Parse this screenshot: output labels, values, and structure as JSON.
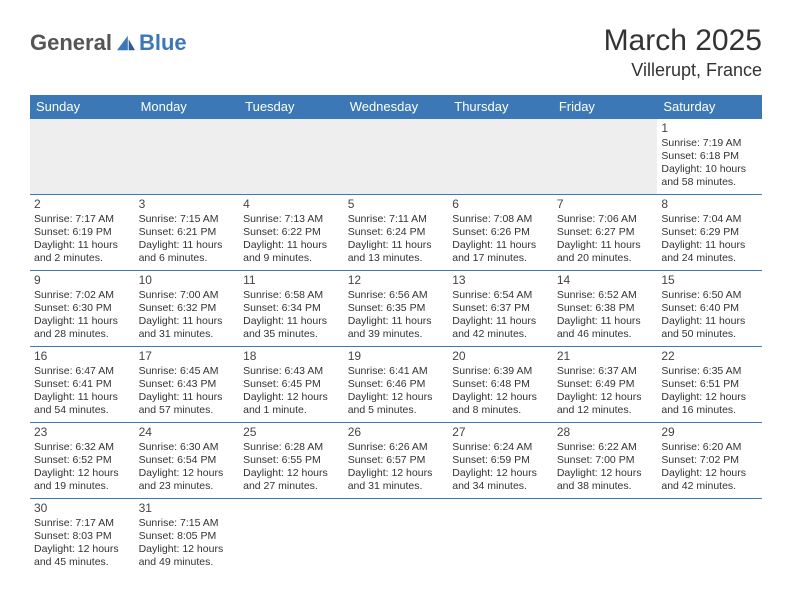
{
  "logo": {
    "text_general": "General",
    "text_blue": "Blue"
  },
  "title": "March 2025",
  "location": "Villerupt, France",
  "colors": {
    "header_bg": "#3b78b5",
    "header_text": "#ffffff",
    "border": "#3b78b5",
    "blank_bg": "#eeeeee",
    "text": "#333333"
  },
  "dayHeaders": [
    "Sunday",
    "Monday",
    "Tuesday",
    "Wednesday",
    "Thursday",
    "Friday",
    "Saturday"
  ],
  "weeks": [
    [
      null,
      null,
      null,
      null,
      null,
      null,
      {
        "n": "1",
        "sr": "Sunrise: 7:19 AM",
        "ss": "Sunset: 6:18 PM",
        "dl": "Daylight: 10 hours and 58 minutes."
      }
    ],
    [
      {
        "n": "2",
        "sr": "Sunrise: 7:17 AM",
        "ss": "Sunset: 6:19 PM",
        "dl": "Daylight: 11 hours and 2 minutes."
      },
      {
        "n": "3",
        "sr": "Sunrise: 7:15 AM",
        "ss": "Sunset: 6:21 PM",
        "dl": "Daylight: 11 hours and 6 minutes."
      },
      {
        "n": "4",
        "sr": "Sunrise: 7:13 AM",
        "ss": "Sunset: 6:22 PM",
        "dl": "Daylight: 11 hours and 9 minutes."
      },
      {
        "n": "5",
        "sr": "Sunrise: 7:11 AM",
        "ss": "Sunset: 6:24 PM",
        "dl": "Daylight: 11 hours and 13 minutes."
      },
      {
        "n": "6",
        "sr": "Sunrise: 7:08 AM",
        "ss": "Sunset: 6:26 PM",
        "dl": "Daylight: 11 hours and 17 minutes."
      },
      {
        "n": "7",
        "sr": "Sunrise: 7:06 AM",
        "ss": "Sunset: 6:27 PM",
        "dl": "Daylight: 11 hours and 20 minutes."
      },
      {
        "n": "8",
        "sr": "Sunrise: 7:04 AM",
        "ss": "Sunset: 6:29 PM",
        "dl": "Daylight: 11 hours and 24 minutes."
      }
    ],
    [
      {
        "n": "9",
        "sr": "Sunrise: 7:02 AM",
        "ss": "Sunset: 6:30 PM",
        "dl": "Daylight: 11 hours and 28 minutes."
      },
      {
        "n": "10",
        "sr": "Sunrise: 7:00 AM",
        "ss": "Sunset: 6:32 PM",
        "dl": "Daylight: 11 hours and 31 minutes."
      },
      {
        "n": "11",
        "sr": "Sunrise: 6:58 AM",
        "ss": "Sunset: 6:34 PM",
        "dl": "Daylight: 11 hours and 35 minutes."
      },
      {
        "n": "12",
        "sr": "Sunrise: 6:56 AM",
        "ss": "Sunset: 6:35 PM",
        "dl": "Daylight: 11 hours and 39 minutes."
      },
      {
        "n": "13",
        "sr": "Sunrise: 6:54 AM",
        "ss": "Sunset: 6:37 PM",
        "dl": "Daylight: 11 hours and 42 minutes."
      },
      {
        "n": "14",
        "sr": "Sunrise: 6:52 AM",
        "ss": "Sunset: 6:38 PM",
        "dl": "Daylight: 11 hours and 46 minutes."
      },
      {
        "n": "15",
        "sr": "Sunrise: 6:50 AM",
        "ss": "Sunset: 6:40 PM",
        "dl": "Daylight: 11 hours and 50 minutes."
      }
    ],
    [
      {
        "n": "16",
        "sr": "Sunrise: 6:47 AM",
        "ss": "Sunset: 6:41 PM",
        "dl": "Daylight: 11 hours and 54 minutes."
      },
      {
        "n": "17",
        "sr": "Sunrise: 6:45 AM",
        "ss": "Sunset: 6:43 PM",
        "dl": "Daylight: 11 hours and 57 minutes."
      },
      {
        "n": "18",
        "sr": "Sunrise: 6:43 AM",
        "ss": "Sunset: 6:45 PM",
        "dl": "Daylight: 12 hours and 1 minute."
      },
      {
        "n": "19",
        "sr": "Sunrise: 6:41 AM",
        "ss": "Sunset: 6:46 PM",
        "dl": "Daylight: 12 hours and 5 minutes."
      },
      {
        "n": "20",
        "sr": "Sunrise: 6:39 AM",
        "ss": "Sunset: 6:48 PM",
        "dl": "Daylight: 12 hours and 8 minutes."
      },
      {
        "n": "21",
        "sr": "Sunrise: 6:37 AM",
        "ss": "Sunset: 6:49 PM",
        "dl": "Daylight: 12 hours and 12 minutes."
      },
      {
        "n": "22",
        "sr": "Sunrise: 6:35 AM",
        "ss": "Sunset: 6:51 PM",
        "dl": "Daylight: 12 hours and 16 minutes."
      }
    ],
    [
      {
        "n": "23",
        "sr": "Sunrise: 6:32 AM",
        "ss": "Sunset: 6:52 PM",
        "dl": "Daylight: 12 hours and 19 minutes."
      },
      {
        "n": "24",
        "sr": "Sunrise: 6:30 AM",
        "ss": "Sunset: 6:54 PM",
        "dl": "Daylight: 12 hours and 23 minutes."
      },
      {
        "n": "25",
        "sr": "Sunrise: 6:28 AM",
        "ss": "Sunset: 6:55 PM",
        "dl": "Daylight: 12 hours and 27 minutes."
      },
      {
        "n": "26",
        "sr": "Sunrise: 6:26 AM",
        "ss": "Sunset: 6:57 PM",
        "dl": "Daylight: 12 hours and 31 minutes."
      },
      {
        "n": "27",
        "sr": "Sunrise: 6:24 AM",
        "ss": "Sunset: 6:59 PM",
        "dl": "Daylight: 12 hours and 34 minutes."
      },
      {
        "n": "28",
        "sr": "Sunrise: 6:22 AM",
        "ss": "Sunset: 7:00 PM",
        "dl": "Daylight: 12 hours and 38 minutes."
      },
      {
        "n": "29",
        "sr": "Sunrise: 6:20 AM",
        "ss": "Sunset: 7:02 PM",
        "dl": "Daylight: 12 hours and 42 minutes."
      }
    ],
    [
      {
        "n": "30",
        "sr": "Sunrise: 7:17 AM",
        "ss": "Sunset: 8:03 PM",
        "dl": "Daylight: 12 hours and 45 minutes."
      },
      {
        "n": "31",
        "sr": "Sunrise: 7:15 AM",
        "ss": "Sunset: 8:05 PM",
        "dl": "Daylight: 12 hours and 49 minutes."
      },
      null,
      null,
      null,
      null,
      null
    ]
  ]
}
